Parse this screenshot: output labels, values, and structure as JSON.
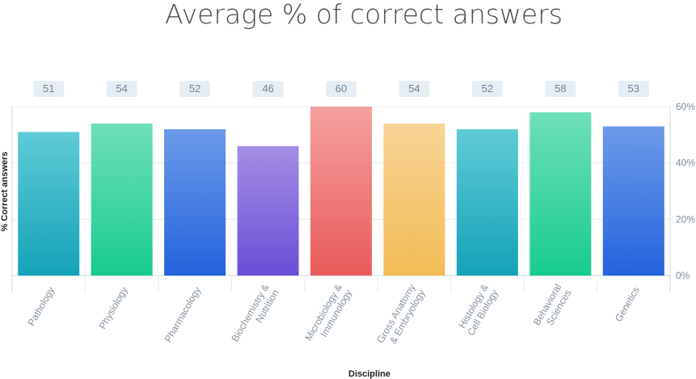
{
  "chart_data": {
    "type": "bar",
    "title": "Average % of correct answers",
    "xlabel": "Discipline",
    "ylabel": "% Correct answers",
    "categories": [
      "Pathology",
      "Physiology",
      "Pharmacology",
      "Biochemistry & Nutrition",
      "Microbiology & Immunology",
      "Gross Anatomy & Embryology",
      "Histology & Cell Biology",
      "Behavioral Sciences",
      "Genetics"
    ],
    "category_lines": [
      [
        "Pathology"
      ],
      [
        "Physiology"
      ],
      [
        "Pharmacology"
      ],
      [
        "Biochemistry &",
        "Nutrition"
      ],
      [
        "Microbiology &",
        "Immunology"
      ],
      [
        "Gross Anatomy",
        "& Embryology"
      ],
      [
        "Histology &",
        "Cell Biology"
      ],
      [
        "Behavioral",
        "Sciences"
      ],
      [
        "Genetics"
      ]
    ],
    "values": [
      51,
      54,
      52,
      46,
      60,
      54,
      52,
      58,
      53
    ],
    "value_labels": [
      "51",
      "54",
      "52",
      "46",
      "60",
      "54",
      "52",
      "58",
      "53"
    ],
    "yticks": [
      0,
      20,
      40,
      60
    ],
    "ytick_labels": [
      "0%",
      "20%",
      "40%",
      "60%"
    ],
    "ylim": [
      0,
      60
    ],
    "grid": true,
    "y_axis_position": "right",
    "bar_gradients": [
      [
        "#5fcbd6",
        "#14a2b8"
      ],
      [
        "#6fe0b9",
        "#17cb8f"
      ],
      [
        "#6b9ae8",
        "#2463dd"
      ],
      [
        "#a48ee4",
        "#6a4ed6"
      ],
      [
        "#f4a09e",
        "#ea5b5b"
      ],
      [
        "#f8d395",
        "#f1bc55"
      ],
      [
        "#5fcbd6",
        "#14a2b8"
      ],
      [
        "#6fe0b9",
        "#17cb8f"
      ],
      [
        "#6b9ae8",
        "#2463dd"
      ]
    ],
    "colors": {
      "badge_bg": "#e7eef3",
      "grid": "#e6e9ee",
      "axis": "#cfd5db"
    }
  }
}
